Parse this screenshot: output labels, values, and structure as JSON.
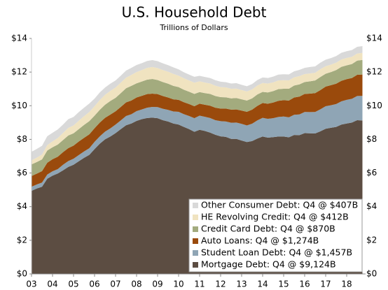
{
  "chart_data": {
    "type": "stacked_area",
    "title": "U.S. Household Debt",
    "subtitle": "Trillions of Dollars",
    "categories": [
      "03",
      null,
      null,
      null,
      "04",
      null,
      null,
      null,
      "05",
      null,
      null,
      null,
      "06",
      null,
      null,
      null,
      "07",
      null,
      null,
      null,
      "08",
      null,
      null,
      null,
      "09",
      null,
      null,
      null,
      "10",
      null,
      null,
      null,
      "11",
      null,
      null,
      null,
      "12",
      null,
      null,
      null,
      "13",
      null,
      null,
      null,
      "14",
      null,
      null,
      null,
      "15",
      null,
      null,
      null,
      "16",
      null,
      null,
      null,
      "17",
      null,
      null,
      null,
      "18",
      null,
      null,
      null
    ],
    "series": [
      {
        "name": "Mortgage Debt: Q4 @ $9,124B",
        "color": "#5c4d42",
        "values": [
          4.94,
          5.08,
          5.18,
          5.66,
          5.84,
          5.97,
          6.16,
          6.36,
          6.49,
          6.7,
          6.9,
          7.08,
          7.42,
          7.74,
          8.0,
          8.17,
          8.37,
          8.61,
          8.84,
          8.94,
          9.1,
          9.2,
          9.27,
          9.29,
          9.26,
          9.14,
          9.06,
          8.94,
          8.88,
          8.74,
          8.61,
          8.45,
          8.57,
          8.5,
          8.4,
          8.27,
          8.18,
          8.15,
          8.03,
          8.03,
          7.93,
          7.84,
          7.9,
          8.05,
          8.17,
          8.1,
          8.13,
          8.17,
          8.17,
          8.12,
          8.26,
          8.25,
          8.37,
          8.36,
          8.35,
          8.48,
          8.63,
          8.69,
          8.74,
          8.88,
          8.94,
          9.0,
          9.14,
          9.124
        ]
      },
      {
        "name": "Student Loan Debt: Q4 @ $1,457B",
        "color": "#8fa5b5",
        "values": [
          0.24,
          0.24,
          0.25,
          0.25,
          0.26,
          0.26,
          0.33,
          0.35,
          0.36,
          0.37,
          0.38,
          0.39,
          0.43,
          0.44,
          0.46,
          0.48,
          0.51,
          0.52,
          0.55,
          0.55,
          0.58,
          0.58,
          0.61,
          0.64,
          0.66,
          0.68,
          0.69,
          0.72,
          0.76,
          0.76,
          0.78,
          0.81,
          0.84,
          0.84,
          0.87,
          0.87,
          0.9,
          0.91,
          0.96,
          0.97,
          0.99,
          0.99,
          1.03,
          1.08,
          1.11,
          1.12,
          1.13,
          1.16,
          1.19,
          1.19,
          1.2,
          1.23,
          1.26,
          1.26,
          1.28,
          1.31,
          1.34,
          1.34,
          1.36,
          1.38,
          1.41,
          1.41,
          1.44,
          1.457
        ]
      },
      {
        "name": "Auto Loans: Q4 @ $1,274B",
        "color": "#9a4a0c",
        "values": [
          0.64,
          0.64,
          0.68,
          0.7,
          0.72,
          0.74,
          0.75,
          0.77,
          0.78,
          0.8,
          0.81,
          0.83,
          0.81,
          0.82,
          0.82,
          0.82,
          0.79,
          0.8,
          0.81,
          0.82,
          0.81,
          0.81,
          0.81,
          0.79,
          0.77,
          0.76,
          0.74,
          0.72,
          0.71,
          0.71,
          0.71,
          0.71,
          0.71,
          0.72,
          0.73,
          0.74,
          0.75,
          0.77,
          0.78,
          0.78,
          0.79,
          0.81,
          0.84,
          0.86,
          0.88,
          0.9,
          0.93,
          0.96,
          0.97,
          1.0,
          1.03,
          1.06,
          1.07,
          1.1,
          1.12,
          1.14,
          1.17,
          1.19,
          1.21,
          1.22,
          1.23,
          1.24,
          1.26,
          1.274
        ]
      },
      {
        "name": "Credit Card Debt: Q4 @ $870B",
        "color": "#a3ab7e",
        "values": [
          0.69,
          0.69,
          0.7,
          0.73,
          0.71,
          0.72,
          0.72,
          0.75,
          0.73,
          0.74,
          0.77,
          0.78,
          0.75,
          0.76,
          0.78,
          0.81,
          0.8,
          0.82,
          0.84,
          0.87,
          0.84,
          0.85,
          0.86,
          0.87,
          0.84,
          0.83,
          0.82,
          0.8,
          0.76,
          0.74,
          0.73,
          0.73,
          0.69,
          0.69,
          0.7,
          0.7,
          0.68,
          0.67,
          0.67,
          0.68,
          0.67,
          0.67,
          0.67,
          0.68,
          0.66,
          0.67,
          0.68,
          0.7,
          0.68,
          0.7,
          0.71,
          0.73,
          0.71,
          0.73,
          0.75,
          0.78,
          0.76,
          0.78,
          0.81,
          0.83,
          0.82,
          0.83,
          0.84,
          0.87
        ]
      },
      {
        "name": "HE Revolving Credit: Q4 @ $412B",
        "color": "#f0e3c0",
        "values": [
          0.24,
          0.26,
          0.29,
          0.32,
          0.35,
          0.39,
          0.42,
          0.45,
          0.47,
          0.5,
          0.52,
          0.55,
          0.56,
          0.58,
          0.59,
          0.6,
          0.61,
          0.62,
          0.63,
          0.65,
          0.67,
          0.68,
          0.7,
          0.71,
          0.71,
          0.71,
          0.71,
          0.71,
          0.68,
          0.68,
          0.67,
          0.67,
          0.64,
          0.63,
          0.62,
          0.61,
          0.6,
          0.59,
          0.57,
          0.56,
          0.55,
          0.54,
          0.53,
          0.53,
          0.53,
          0.53,
          0.52,
          0.51,
          0.51,
          0.5,
          0.49,
          0.49,
          0.47,
          0.47,
          0.46,
          0.46,
          0.45,
          0.44,
          0.44,
          0.44,
          0.44,
          0.43,
          0.42,
          0.412
        ]
      },
      {
        "name": "Other Consumer Debt: Q4 @ $407B",
        "color": "#d9d9d9",
        "values": [
          0.51,
          0.52,
          0.52,
          0.53,
          0.51,
          0.51,
          0.5,
          0.52,
          0.5,
          0.51,
          0.5,
          0.5,
          0.45,
          0.45,
          0.43,
          0.43,
          0.42,
          0.42,
          0.42,
          0.42,
          0.42,
          0.41,
          0.41,
          0.41,
          0.41,
          0.4,
          0.39,
          0.39,
          0.37,
          0.36,
          0.35,
          0.35,
          0.33,
          0.33,
          0.33,
          0.33,
          0.32,
          0.31,
          0.31,
          0.32,
          0.31,
          0.31,
          0.32,
          0.33,
          0.33,
          0.33,
          0.34,
          0.35,
          0.35,
          0.35,
          0.36,
          0.37,
          0.37,
          0.38,
          0.38,
          0.39,
          0.39,
          0.39,
          0.39,
          0.4,
          0.4,
          0.4,
          0.4,
          0.407
        ]
      }
    ],
    "ylim": [
      0,
      14
    ],
    "yticks": [
      {
        "value": 0,
        "label": "$0"
      },
      {
        "value": 2,
        "label": "$2"
      },
      {
        "value": 4,
        "label": "$4"
      },
      {
        "value": 6,
        "label": "$6"
      },
      {
        "value": 8,
        "label": "$8"
      },
      {
        "value": 10,
        "label": "$10"
      },
      {
        "value": 12,
        "label": "$12"
      },
      {
        "value": 14,
        "label": "$14"
      }
    ],
    "legend": "lower-right"
  }
}
